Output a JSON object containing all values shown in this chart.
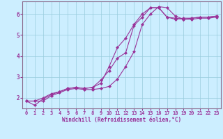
{
  "bg_color": "#cceeff",
  "grid_color": "#99ccdd",
  "line_color": "#993399",
  "spine_color": "#886688",
  "xlabel": "Windchill (Refroidissement éolien,°C)",
  "xlim": [
    -0.5,
    23.5
  ],
  "ylim": [
    1.5,
    6.6
  ],
  "yticks": [
    2,
    3,
    4,
    5,
    6
  ],
  "xticks": [
    0,
    1,
    2,
    3,
    4,
    5,
    6,
    7,
    8,
    9,
    10,
    11,
    12,
    13,
    14,
    15,
    16,
    17,
    18,
    19,
    20,
    21,
    22,
    23
  ],
  "line1_x": [
    0,
    1,
    2,
    3,
    4,
    5,
    6,
    7,
    8,
    9,
    10,
    11,
    12,
    13,
    14,
    15,
    16,
    17,
    18,
    19,
    20,
    21,
    22,
    23
  ],
  "line1_y": [
    1.85,
    1.85,
    1.85,
    2.1,
    2.25,
    2.4,
    2.45,
    2.4,
    2.4,
    2.45,
    2.55,
    2.9,
    3.5,
    4.2,
    5.5,
    6.0,
    6.35,
    6.3,
    5.9,
    5.75,
    5.75,
    5.8,
    5.8,
    5.85
  ],
  "line2_x": [
    0,
    1,
    2,
    3,
    4,
    5,
    6,
    7,
    8,
    9,
    10,
    11,
    12,
    13,
    14,
    15,
    16,
    17,
    18,
    19,
    20,
    21,
    22,
    23
  ],
  "line2_y": [
    1.85,
    1.85,
    2.0,
    2.2,
    2.3,
    2.45,
    2.5,
    2.45,
    2.5,
    2.85,
    3.3,
    3.9,
    4.15,
    5.45,
    5.85,
    6.3,
    6.3,
    5.85,
    5.75,
    5.8,
    5.8,
    5.85,
    5.85,
    5.9
  ],
  "line3_x": [
    0,
    1,
    2,
    3,
    4,
    5,
    6,
    7,
    8,
    9,
    10,
    11,
    12,
    13,
    14,
    15,
    16,
    17,
    18,
    19,
    20,
    21,
    22,
    23
  ],
  "line3_y": [
    1.85,
    1.65,
    1.95,
    2.15,
    2.3,
    2.45,
    2.5,
    2.45,
    2.5,
    2.7,
    3.5,
    4.4,
    4.85,
    5.5,
    6.0,
    6.3,
    6.3,
    5.85,
    5.8,
    5.75,
    5.8,
    5.85,
    5.85,
    5.9
  ],
  "xlabel_fontsize": 5.5,
  "tick_fontsize": 5.0,
  "ytick_fontsize": 5.5
}
